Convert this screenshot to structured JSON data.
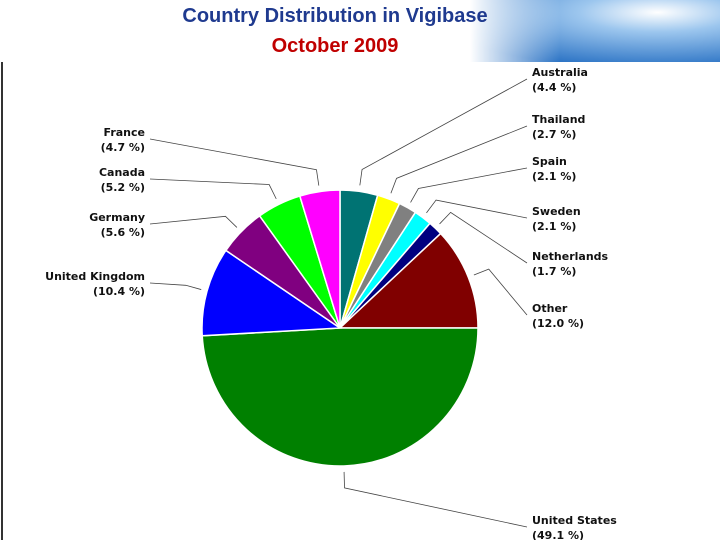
{
  "chart_data": {
    "type": "pie",
    "title": "Country Distribution in Vigibase",
    "subtitle": "October 2009",
    "categories": [
      "Australia",
      "Thailand",
      "Spain",
      "Sweden",
      "Netherlands",
      "Other",
      "United States",
      "United Kingdom",
      "Germany",
      "Canada",
      "France"
    ],
    "values": [
      4.4,
      2.7,
      2.1,
      2.1,
      1.7,
      12.0,
      49.1,
      10.4,
      5.6,
      5.2,
      4.7
    ],
    "value_labels": [
      "(4.4 %)",
      "(2.7 %)",
      "(2.1 %)",
      "(2.1 %)",
      "(1.7 %)",
      "(12.0 %)",
      "(49.1 %)",
      "(10.4 %)",
      "(5.6 %)",
      "(5.2 %)",
      "(4.7 %)"
    ],
    "colors": [
      "#007373",
      "#ffff00",
      "#808080",
      "#00ffff",
      "#000080",
      "#800000",
      "#008000",
      "#0000ff",
      "#800080",
      "#00ff00",
      "#ff00ff"
    ]
  }
}
